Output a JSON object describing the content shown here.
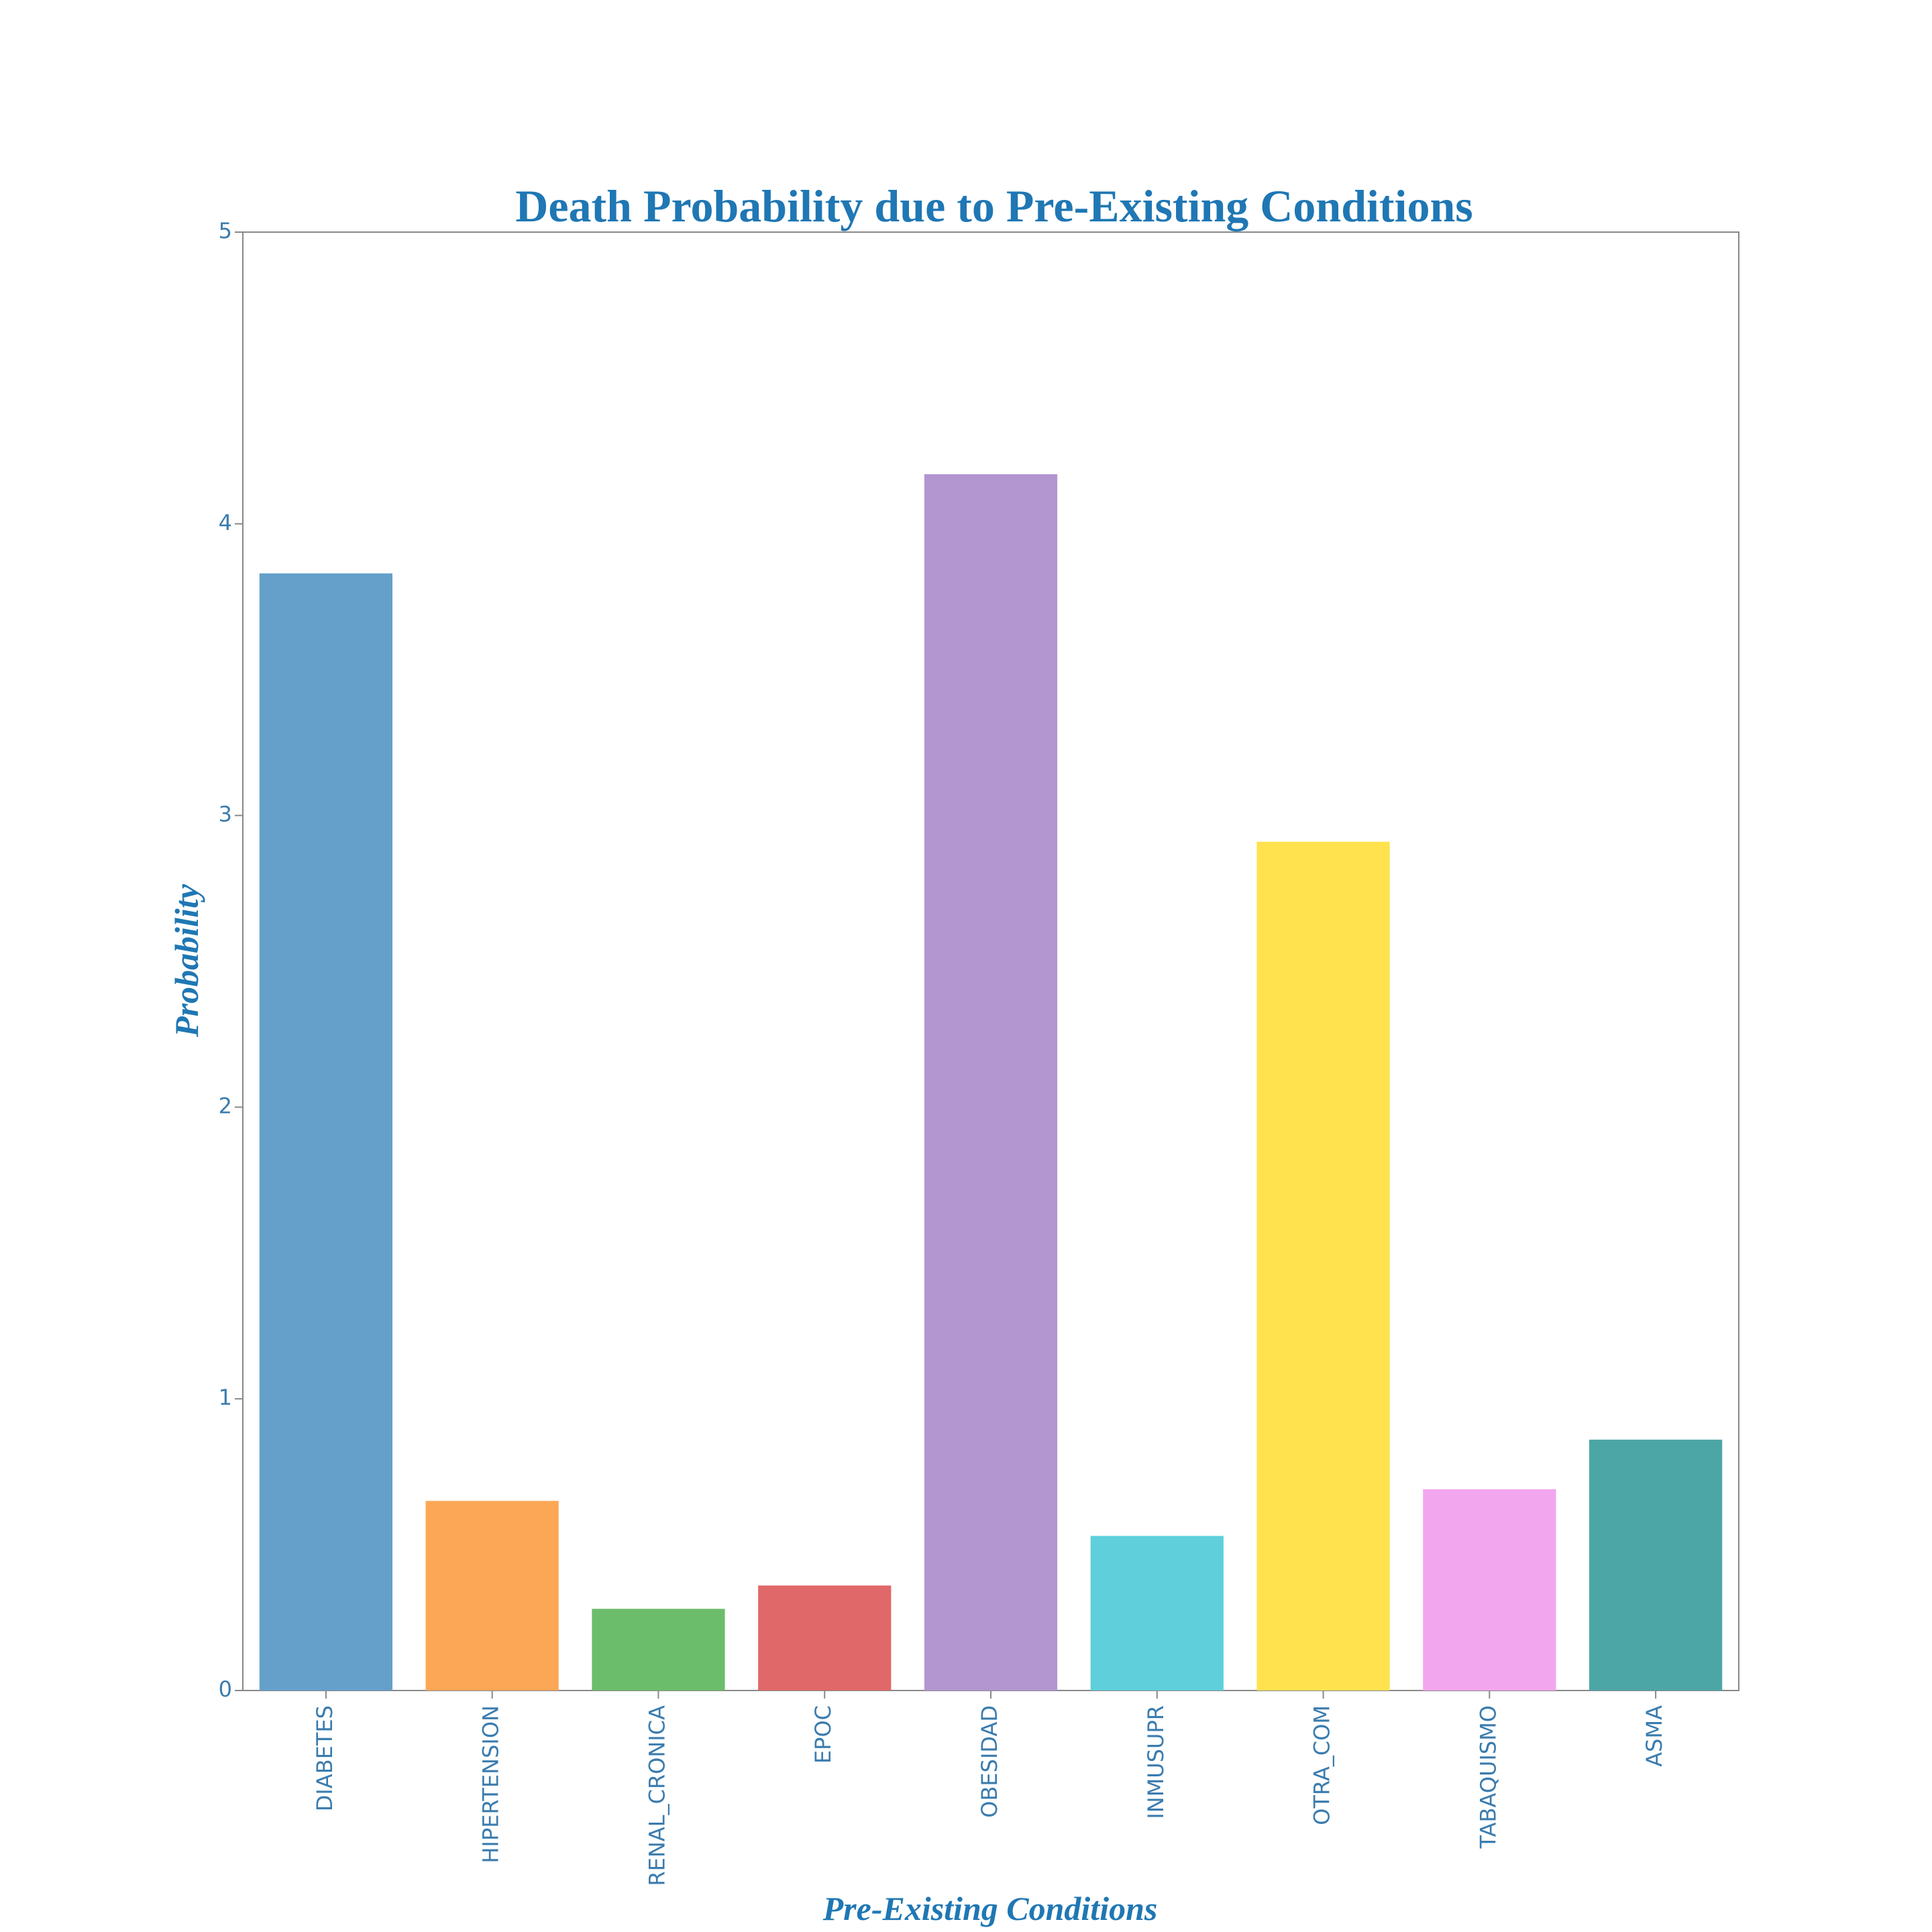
{
  "chart_data": {
    "type": "bar",
    "title": "Death Probability due to Pre-Existing Conditions",
    "xlabel": "Pre-Existing Conditions",
    "ylabel": "Probability",
    "categories": [
      "DIABETES",
      "HIPERTENSION",
      "RENAL_CRONICA",
      "EPOC",
      "OBESIDAD",
      "INMUSUPR",
      "OTRA_COM",
      "TABAQUISMO",
      "ASMA"
    ],
    "values": [
      3.83,
      0.65,
      0.28,
      0.36,
      4.17,
      0.53,
      2.91,
      0.69,
      0.86
    ],
    "colors": [
      "#64a0ca",
      "#fca756",
      "#6cbd6b",
      "#e06868",
      "#b395cf",
      "#5ecfdb",
      "#ffe24e",
      "#f2a6ee",
      "#4ca6a6"
    ],
    "ylim": [
      0,
      5
    ],
    "yticks": [
      0,
      1,
      2,
      3,
      4,
      5
    ],
    "grid": false,
    "legend": "none"
  },
  "style": {
    "text_color": "#2f7ab3",
    "title_color": "#1f77b4",
    "tick_color": "#3b7cae",
    "frame_color": "#888888"
  }
}
